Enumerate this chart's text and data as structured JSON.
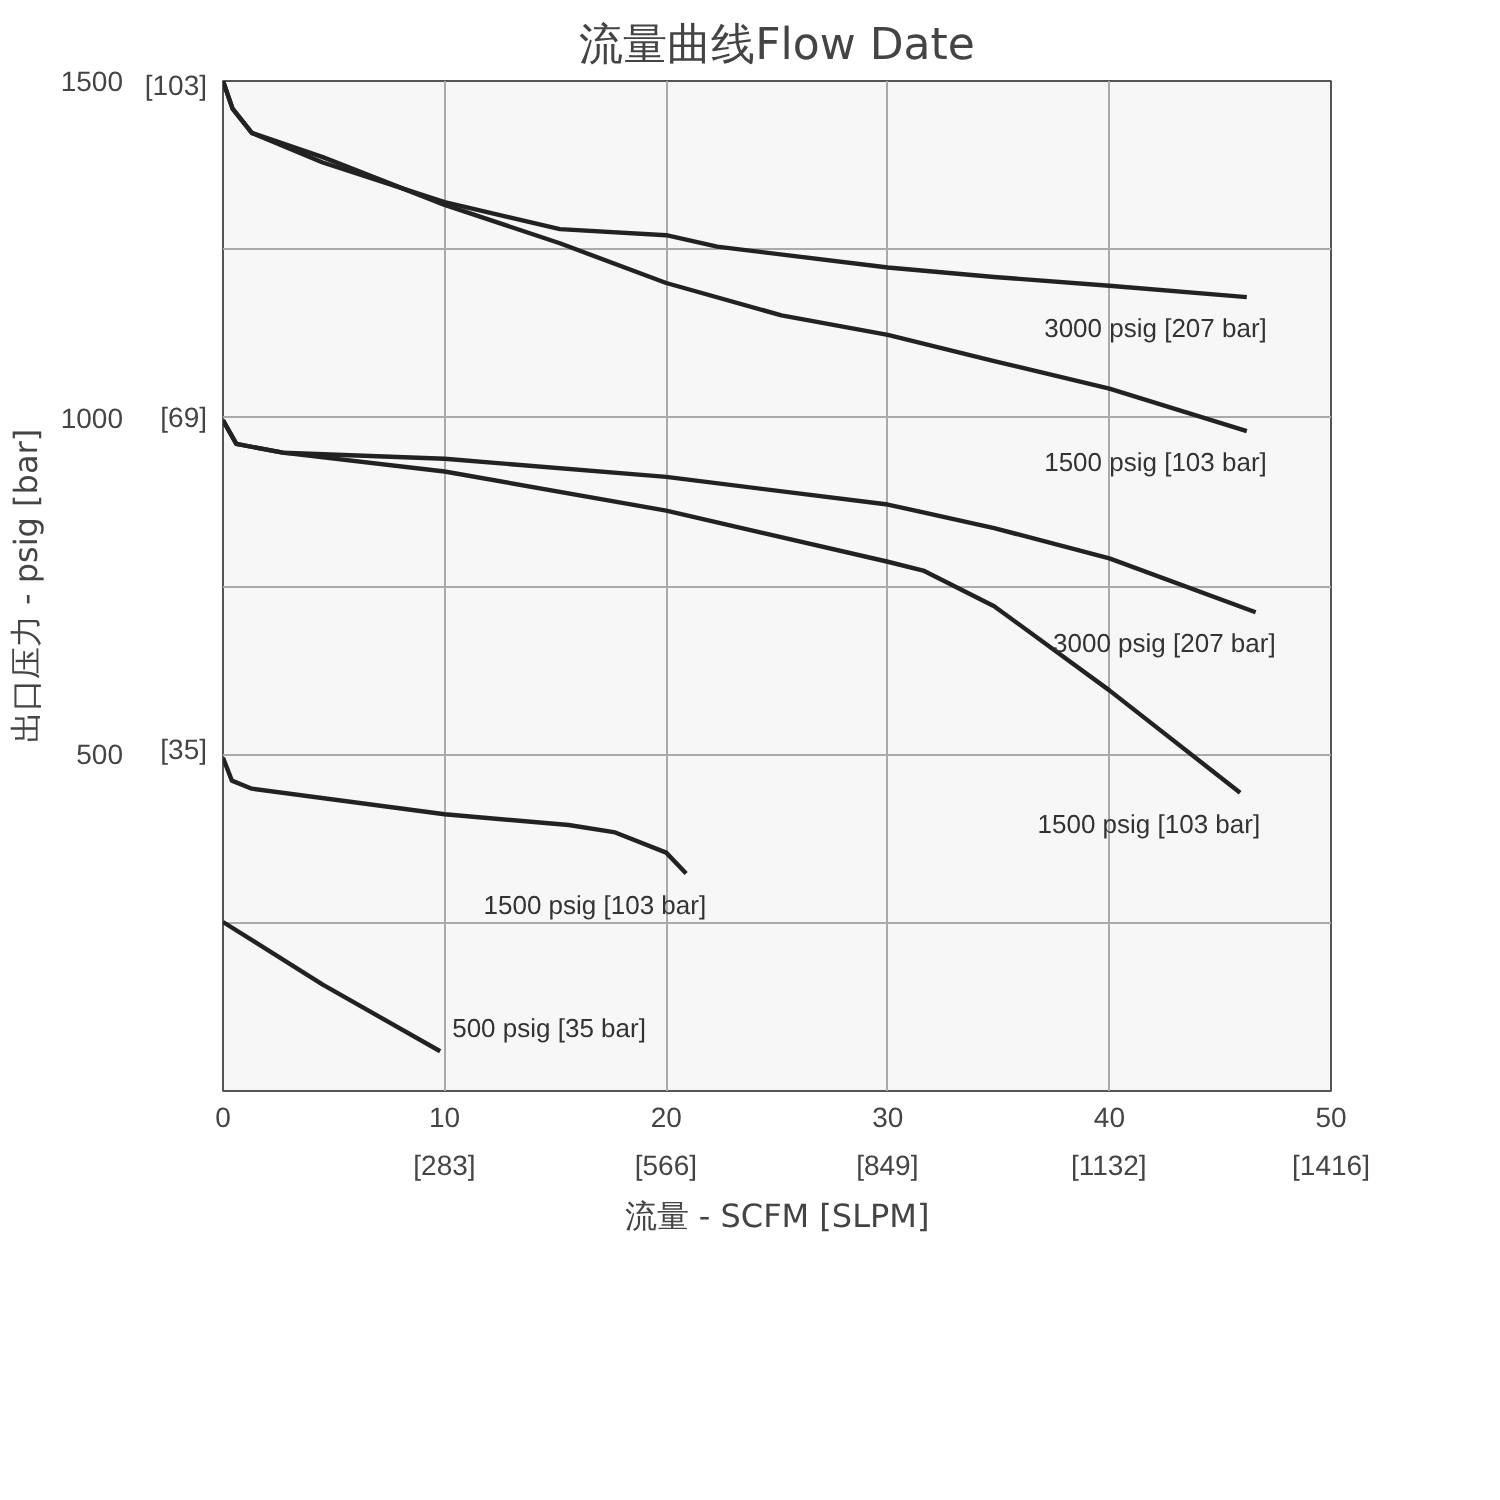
{
  "chart_data": {
    "type": "line",
    "title": "流量曲线Flow Date",
    "xlabel": "流量 - SCFM [SLPM]",
    "ylabel": "出口压力 - psig [bar]",
    "xlim": [
      0,
      50
    ],
    "ylim": [
      0,
      1500
    ],
    "xticks": [
      0,
      10,
      20,
      30,
      40,
      50
    ],
    "yticks": [
      {
        "value": 250,
        "label": null
      },
      500,
      {
        "value": 750,
        "label": null
      },
      1000,
      {
        "value": 1250,
        "label": null
      },
      1500
    ],
    "x2lim": [
      0,
      1416
    ],
    "x2ticks": [
      {
        "value": 283,
        "label": "[283]"
      },
      {
        "value": 566,
        "label": "[566]"
      },
      {
        "value": 849,
        "label": "[849]"
      },
      {
        "value": 1132,
        "label": "[1132]"
      },
      {
        "value": 1416,
        "label": "[1416]"
      }
    ],
    "y2lim": [
      0,
      103.4
    ],
    "y2ticks": [
      {
        "value": 35,
        "label": "[35]"
      },
      {
        "value": 69,
        "label": "[69]"
      },
      {
        "value": 103,
        "label": "[103]"
      }
    ],
    "grid": true,
    "marker": "none",
    "line_style": "solid",
    "series": [
      {
        "name": "3000 psig [207 bar]",
        "color": "#222222",
        "x": [
          0,
          0.43,
          1.3,
          4.5,
          10,
          15.2,
          20,
          22.3,
          30,
          34.8,
          40,
          46.2
        ],
        "values": [
          1500,
          1459,
          1423,
          1379,
          1320,
          1280,
          1271,
          1254,
          1223,
          1209,
          1196,
          1179
        ]
      },
      {
        "name": "1500 psig [103 bar]",
        "color": "#222222",
        "x": [
          0,
          0.43,
          1.3,
          4.5,
          10,
          15.2,
          20,
          25.2,
          30,
          34.8,
          40,
          46.2
        ],
        "values": [
          1500,
          1459,
          1423,
          1387,
          1316,
          1259,
          1200,
          1152,
          1123,
          1084,
          1043,
          980
        ]
      },
      {
        "name": "3000 psig [207 bar]",
        "color": "#222222",
        "x": [
          0,
          0.6,
          2.7,
          10,
          20,
          30,
          34.8,
          40,
          46.6
        ],
        "values": [
          996,
          961,
          948,
          939,
          912,
          871,
          836,
          791,
          711
        ]
      },
      {
        "name": "1500 psig [103 bar]",
        "color": "#222222",
        "x": [
          0,
          0.6,
          2.7,
          10,
          20,
          30,
          31.6,
          34.8,
          40,
          45.9
        ],
        "values": [
          996,
          961,
          948,
          920,
          862,
          786,
          773,
          720,
          595,
          443
        ]
      },
      {
        "name": "1500 psig [103 bar]",
        "color": "#222222",
        "x": [
          0,
          0.4,
          1.3,
          10,
          15.6,
          17.7,
          20,
          20.9
        ],
        "values": [
          495,
          461,
          449,
          411,
          395,
          384,
          354,
          323
        ]
      },
      {
        "name": "500 psig [35 bar]",
        "color": "#222222",
        "x": [
          0,
          4.5,
          9.8
        ],
        "values": [
          251,
          158,
          59
        ]
      }
    ]
  }
}
